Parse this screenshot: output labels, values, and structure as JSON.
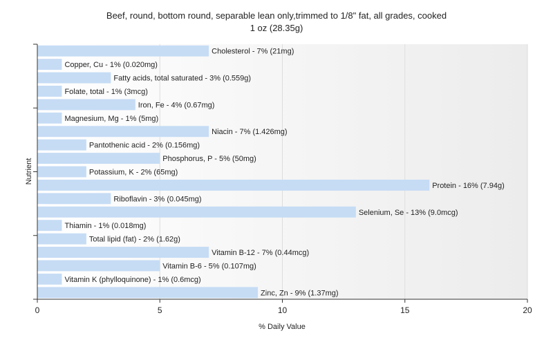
{
  "chart_data": {
    "type": "bar",
    "orientation": "horizontal",
    "title": "Beef, round, bottom round, separable lean only,trimmed to 1/8\" fat, all grades, cooked",
    "subtitle": "1 oz (28.35g)",
    "xlabel": "% Daily Value",
    "ylabel": "Nutrient",
    "xlim": [
      0,
      20
    ],
    "xticks": [
      "0",
      "5",
      "10",
      "15",
      "20"
    ],
    "grid": true,
    "bar_color": "#c6dcf5",
    "categories": [
      "Cholesterol",
      "Copper, Cu",
      "Fatty acids, total saturated",
      "Folate, total",
      "Iron, Fe",
      "Magnesium, Mg",
      "Niacin",
      "Pantothenic acid",
      "Phosphorus, P",
      "Potassium, K",
      "Protein",
      "Riboflavin",
      "Selenium, Se",
      "Thiamin",
      "Total lipid (fat)",
      "Vitamin B-12",
      "Vitamin B-6",
      "Vitamin K (phylloquinone)",
      "Zinc, Zn"
    ],
    "values": [
      7,
      1,
      3,
      1,
      4,
      1,
      7,
      2,
      5,
      2,
      16,
      3,
      13,
      1,
      2,
      7,
      5,
      1,
      9
    ],
    "labels": [
      "Cholesterol - 7% (21mg)",
      "Copper, Cu - 1% (0.020mg)",
      "Fatty acids, total saturated - 3% (0.559g)",
      "Folate, total - 1% (3mcg)",
      "Iron, Fe - 4% (0.67mg)",
      "Magnesium, Mg - 1% (5mg)",
      "Niacin - 7% (1.426mg)",
      "Pantothenic acid - 2% (0.156mg)",
      "Phosphorus, P - 5% (50mg)",
      "Potassium, K - 2% (65mg)",
      "Protein - 16% (7.94g)",
      "Riboflavin - 3% (0.045mg)",
      "Selenium, Se - 13% (9.0mcg)",
      "Thiamin - 1% (0.018mg)",
      "Total lipid (fat) - 2% (1.62g)",
      "Vitamin B-12 - 7% (0.44mcg)",
      "Vitamin B-6 - 5% (0.107mg)",
      "Vitamin K (phylloquinone) - 1% (0.6mcg)",
      "Zinc, Zn - 9% (1.37mg)"
    ]
  }
}
